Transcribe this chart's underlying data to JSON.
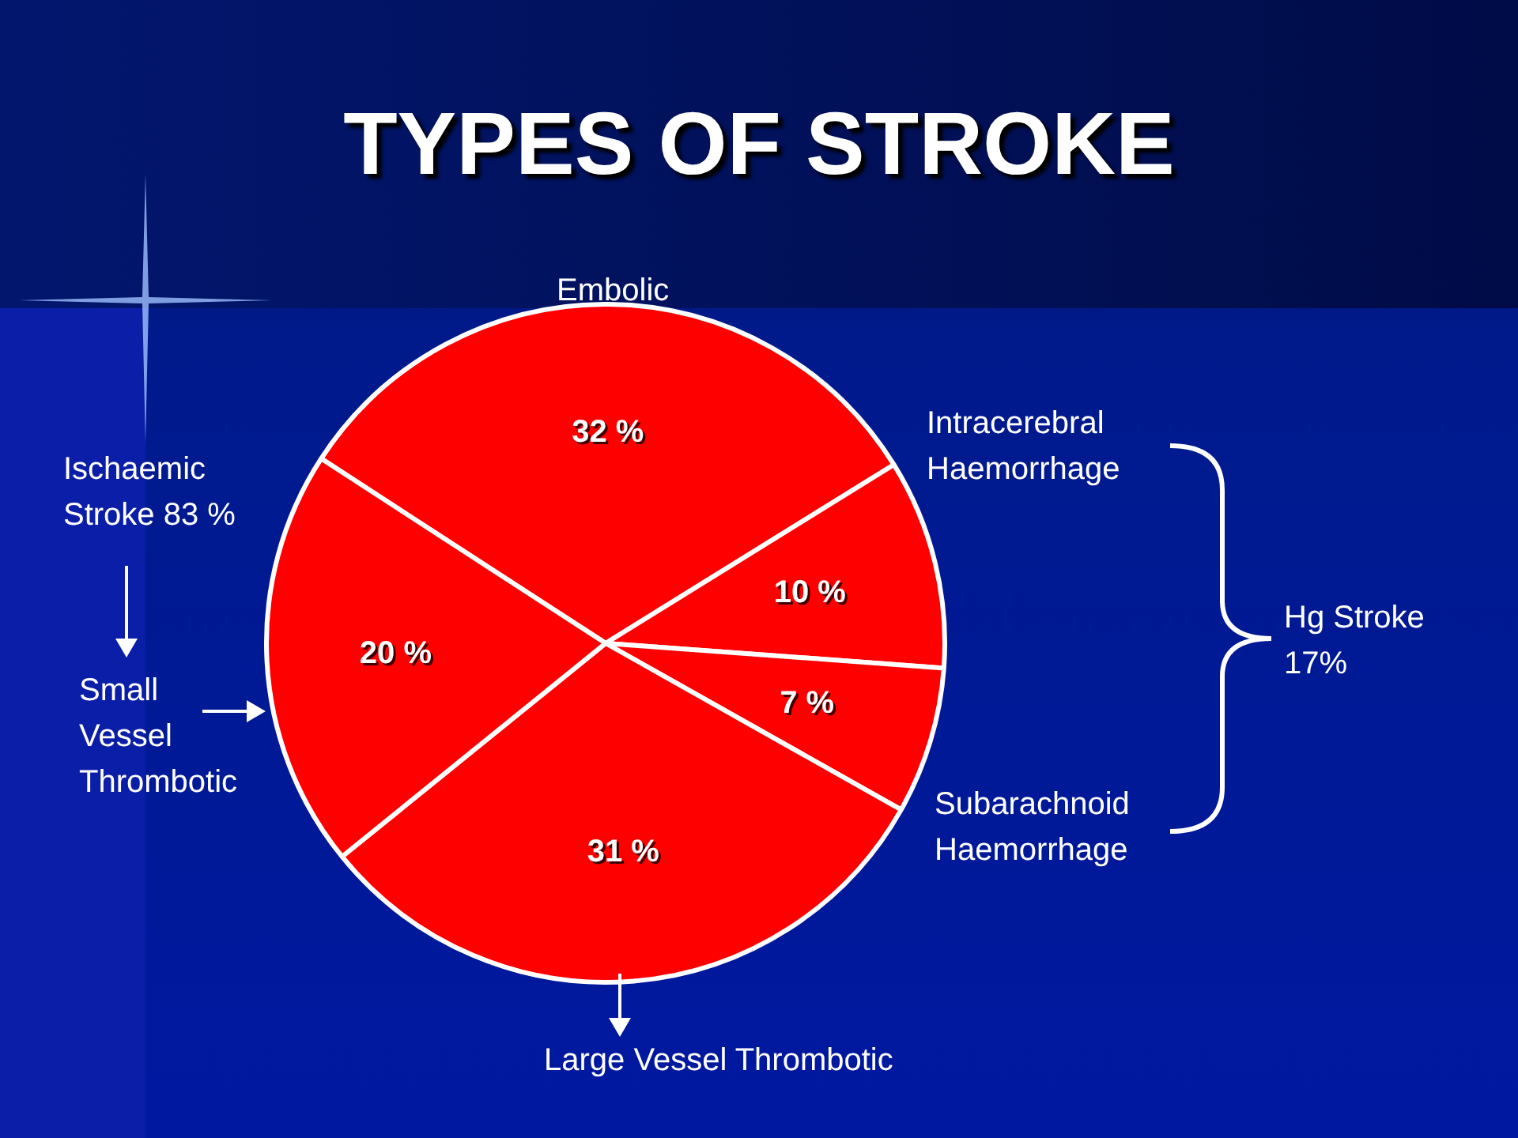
{
  "chart_data": {
    "type": "pie",
    "title": "TYPES OF STROKE",
    "categories": [
      "Embolic",
      "Intracerebral Haemorrhage",
      "Subarachnoid Haemorrhage",
      "Large Vessel Thrombotic",
      "Small Vessel Thrombotic"
    ],
    "values": [
      32,
      10,
      7,
      31,
      20
    ],
    "colors": [
      "#ff0000",
      "#ff0000",
      "#ff0000",
      "#ff0000",
      "#ff0000"
    ],
    "value_labels": [
      "32 %",
      "10 %",
      "7 %",
      "31 %",
      "20 %"
    ],
    "annotations": [
      "Ischaemic Stroke 83 %",
      "Hg Stroke 17%"
    ]
  }
}
